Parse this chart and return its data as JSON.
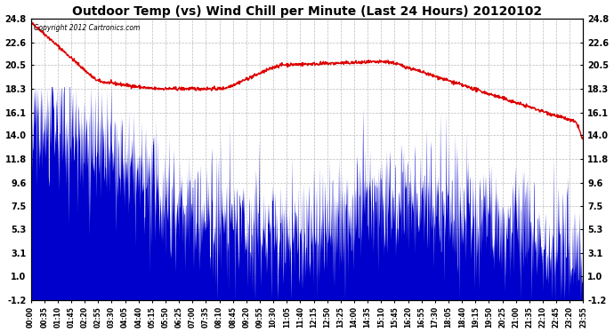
{
  "title": "Outdoor Temp (vs) Wind Chill per Minute (Last 24 Hours) 20120102",
  "copyright_text": "Copyright 2012 Cartronics.com",
  "yticks": [
    24.8,
    22.6,
    20.5,
    18.3,
    16.1,
    14.0,
    11.8,
    9.6,
    7.5,
    5.3,
    3.1,
    1.0,
    -1.2
  ],
  "ylim": [
    -1.2,
    24.8
  ],
  "n_points": 1440,
  "background_color": "#ffffff",
  "plot_bg_color": "#ffffff",
  "grid_color": "#bbbbbb",
  "red_line_color": "#dd0000",
  "blue_fill_color": "#0000cc",
  "title_fontsize": 10,
  "xtick_labels": [
    "00:00",
    "00:35",
    "01:10",
    "01:45",
    "02:20",
    "02:55",
    "03:30",
    "04:05",
    "04:40",
    "05:15",
    "05:50",
    "06:25",
    "07:00",
    "07:35",
    "08:10",
    "08:45",
    "09:20",
    "09:55",
    "10:30",
    "11:05",
    "11:40",
    "12:15",
    "12:50",
    "13:25",
    "14:00",
    "14:35",
    "15:10",
    "15:45",
    "16:20",
    "16:55",
    "17:30",
    "18:05",
    "18:40",
    "19:15",
    "19:50",
    "20:25",
    "21:00",
    "21:35",
    "22:10",
    "22:45",
    "23:20",
    "23:55"
  ]
}
